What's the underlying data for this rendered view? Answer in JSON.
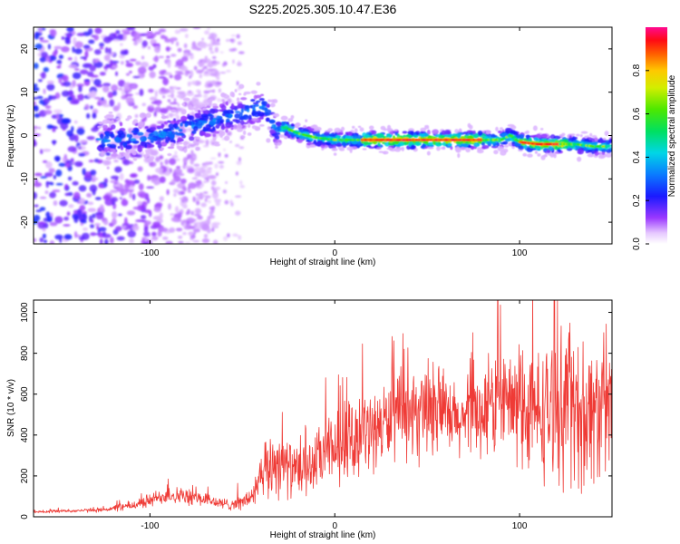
{
  "figure": {
    "title": "S225.2025.305.10.47.E36"
  },
  "chart_data": [
    {
      "type": "heatmap",
      "title": "S225.2025.305.10.47.E36",
      "xlabel": "Height of straight line (km)",
      "ylabel": "Frequency (Hz)",
      "xlim": [
        -163,
        150
      ],
      "ylim": [
        -25,
        25
      ],
      "xticks": [
        -100,
        0,
        100
      ],
      "yticks": [
        20,
        10,
        0,
        -10,
        -20
      ],
      "colorbar": {
        "label": "Normalized spectral amplitude",
        "range": [
          0,
          1
        ],
        "ticks": [
          0.0,
          0.2,
          0.4,
          0.6,
          0.8
        ]
      },
      "ridge": {
        "x": [
          -125,
          -110,
          -95,
          -85,
          -75,
          -65,
          -55,
          -45,
          -38,
          -32,
          -28,
          -25,
          -20,
          -10,
          0,
          20,
          40,
          60,
          80,
          90,
          95,
          100,
          110,
          120,
          130,
          140,
          148
        ],
        "y": [
          -1,
          -0.5,
          0,
          1,
          2.5,
          3.5,
          4.5,
          6,
          7,
          1,
          2,
          1.5,
          0.5,
          -0.5,
          -1,
          -1,
          -1,
          -1,
          -1,
          -1,
          0,
          -1.5,
          -2,
          -2,
          -2,
          -2.5,
          -2.5
        ],
        "peak_amplitude": 0.95
      }
    },
    {
      "type": "line",
      "xlabel": "Height of straight line (km)",
      "ylabel": "SNR (10 * v/v)",
      "xlim": [
        -163,
        150
      ],
      "ylim": [
        0,
        1060
      ],
      "xticks": [
        -100,
        0,
        100
      ],
      "yticks": [
        0,
        200,
        400,
        600,
        800,
        1000
      ],
      "color": "#ef3b36",
      "series": [
        {
          "name": "SNR",
          "x": [
            -163,
            -150,
            -140,
            -130,
            -120,
            -110,
            -100,
            -90,
            -80,
            -70,
            -60,
            -50,
            -45,
            -40,
            -35,
            -30,
            -25,
            -20,
            -15,
            -10,
            -5,
            0,
            5,
            10,
            15,
            20,
            25,
            30,
            35,
            40,
            45,
            50,
            55,
            60,
            65,
            70,
            75,
            80,
            85,
            90,
            95,
            100,
            105,
            110,
            115,
            120,
            125,
            130,
            135,
            140,
            145,
            150
          ],
          "values": [
            25,
            28,
            30,
            32,
            40,
            55,
            80,
            110,
            95,
            85,
            60,
            70,
            100,
            170,
            250,
            280,
            240,
            210,
            230,
            270,
            300,
            330,
            350,
            380,
            400,
            420,
            450,
            470,
            490,
            500,
            470,
            500,
            520,
            480,
            460,
            470,
            490,
            520,
            540,
            560,
            550,
            520,
            510,
            500,
            520,
            540,
            560,
            520,
            500,
            530,
            520,
            500
          ],
          "spread": [
            8,
            8,
            8,
            10,
            15,
            25,
            35,
            45,
            40,
            35,
            30,
            35,
            60,
            120,
            170,
            180,
            140,
            120,
            130,
            150,
            170,
            180,
            180,
            180,
            190,
            190,
            200,
            200,
            210,
            220,
            200,
            200,
            210,
            200,
            200,
            200,
            210,
            230,
            240,
            260,
            280,
            300,
            320,
            320,
            340,
            360,
            380,
            380,
            380,
            360,
            360,
            350
          ]
        }
      ]
    }
  ]
}
